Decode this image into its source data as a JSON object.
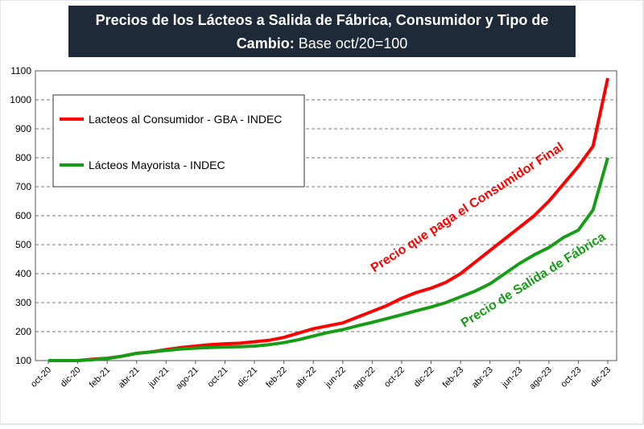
{
  "chart_data": {
    "type": "line",
    "title_parts": [
      "Precios de los Lácteos a Salida de Fábrica, Consumidor y Tipo de",
      "Cambio:",
      "Base oct/20=100"
    ],
    "categories": [
      "oct-20",
      null,
      "dic-20",
      null,
      "feb-21",
      null,
      "abr-21",
      null,
      "jun-21",
      null,
      "ago-21",
      null,
      "oct-21",
      null,
      "dic-21",
      null,
      "feb-22",
      null,
      "abr-22",
      null,
      "jun-22",
      null,
      "ago-22",
      null,
      "oct-22",
      null,
      "dic-22",
      null,
      "feb-23",
      null,
      "abr-23",
      null,
      "jun-23",
      null,
      "ago-23",
      null,
      "oct-23",
      null,
      "dic-23"
    ],
    "series": [
      {
        "name": "Lacteos al Consumidor - GBA - INDEC",
        "color": "#ff0000",
        "values": [
          100,
          100,
          100,
          105,
          108,
          115,
          125,
          130,
          138,
          145,
          150,
          155,
          158,
          160,
          165,
          170,
          180,
          195,
          210,
          220,
          230,
          250,
          270,
          290,
          315,
          335,
          350,
          370,
          400,
          440,
          480,
          520,
          560,
          600,
          650,
          710,
          770,
          840,
          1075
        ]
      },
      {
        "name": "Lácteos Mayorista - INDEC",
        "color": "#169c16",
        "values": [
          100,
          100,
          100,
          103,
          107,
          115,
          125,
          130,
          135,
          140,
          143,
          145,
          147,
          148,
          150,
          155,
          162,
          172,
          185,
          197,
          207,
          220,
          232,
          245,
          258,
          272,
          285,
          300,
          320,
          340,
          365,
          400,
          435,
          465,
          490,
          525,
          550,
          620,
          800
        ]
      }
    ],
    "annotations": [
      "Precio que paga el Consumidor Final",
      "Precio de Salida de Fábrica"
    ],
    "ylim": [
      100,
      1100
    ],
    "yticks": [
      100,
      200,
      300,
      400,
      500,
      600,
      700,
      800,
      900,
      1000,
      1100
    ],
    "grid": true
  }
}
